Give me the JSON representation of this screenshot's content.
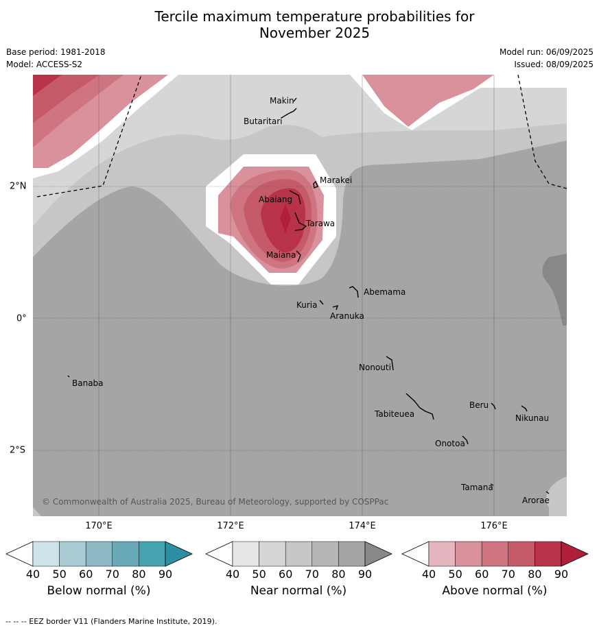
{
  "title_line1": "Tercile maximum temperature probabilities for",
  "title_line2": "November 2025",
  "base_period": "Base period: 1981-2018",
  "model": "Model: ACCESS-S2",
  "model_run": "Model run: 06/09/2025",
  "issued": "Issued: 08/09/2025",
  "lon_labels": [
    "170°E",
    "172°E",
    "174°E",
    "176°E"
  ],
  "lat_labels": [
    "2°N",
    "0°",
    "2°S"
  ],
  "places": {
    "makin": "Makin",
    "butaritari": "Butaritari",
    "marakei": "Marakei",
    "abaiang": "Abaiang",
    "tarawa": "Tarawa",
    "maiana": "Maiana",
    "abemama": "Abemama",
    "kuria": "Kuria",
    "aranuka": "Aranuka",
    "nonouti": "Nonouti",
    "banaba": "Banaba",
    "beru": "Beru",
    "nikunau": "Nikunau",
    "tabiteuea": "Tabiteuea",
    "onotoa": "Onotoa",
    "tamana": "Tamana",
    "arorae": "Arorae"
  },
  "copyright": "© Commonwealth of Australia 2025, Bureau of Meteorology, supported by COSPPac",
  "colorbars": {
    "below": {
      "title": "Below normal (%)",
      "ticks": [
        "40",
        "50",
        "60",
        "70",
        "80",
        "90"
      ],
      "colors": [
        "#cde3ea",
        "#a8cad3",
        "#8cb8c4",
        "#6aaab8",
        "#45a3b2",
        "#2f8fa2"
      ]
    },
    "near": {
      "title": "Near normal (%)",
      "ticks": [
        "40",
        "50",
        "60",
        "70",
        "80",
        "90"
      ],
      "colors": [
        "#e6e6e6",
        "#d6d6d6",
        "#c6c6c6",
        "#b6b6b6",
        "#a5a5a5",
        "#888888"
      ]
    },
    "above": {
      "title": "Above normal (%)",
      "ticks": [
        "40",
        "50",
        "60",
        "70",
        "80",
        "90"
      ],
      "colors": [
        "#e4b5be",
        "#d9919b",
        "#cf7581",
        "#c55a68",
        "#b83348",
        "#b01e3a"
      ]
    }
  },
  "footer": "-- -- -- EEZ border V11 (Flanders Marine Institute, 2019)."
}
